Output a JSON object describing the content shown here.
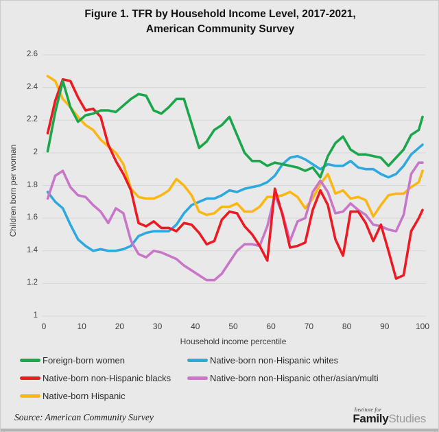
{
  "title": {
    "line1": "Figure 1. TFR by Household Income Level, 2017-2021,",
    "line2": "American Community Survey"
  },
  "chart_data": {
    "type": "line",
    "title": "Figure 1. TFR by Household Income Level, 2017-2021, American Community Survey",
    "xlabel": "Household income percentile",
    "ylabel": "Children born per woman",
    "xlim": [
      0,
      100
    ],
    "ylim": [
      1.0,
      2.6
    ],
    "grid": true,
    "legend_position": "bottom",
    "x_ticks": [
      "0",
      "10",
      "20",
      "30",
      "40",
      "50",
      "60",
      "70",
      "80",
      "90",
      "100"
    ],
    "x_tick_values": [
      0,
      10,
      20,
      30,
      40,
      50,
      60,
      70,
      80,
      90,
      100
    ],
    "y_ticks": [
      "2.6",
      "2.4",
      "2.2",
      "2",
      "1.8",
      "1.6",
      "1.4",
      "1.2",
      "1"
    ],
    "y_tick_values": [
      2.6,
      2.4,
      2.2,
      2.0,
      1.8,
      1.6,
      1.4,
      1.2,
      1.0
    ],
    "x": [
      1,
      3,
      5,
      7,
      9,
      11,
      13,
      15,
      17,
      19,
      21,
      23,
      25,
      27,
      29,
      31,
      33,
      35,
      37,
      39,
      41,
      43,
      45,
      47,
      49,
      51,
      53,
      55,
      57,
      59,
      61,
      63,
      65,
      67,
      69,
      71,
      73,
      75,
      77,
      79,
      81,
      83,
      85,
      87,
      89,
      91,
      93,
      95,
      97,
      99,
      100
    ],
    "draw_order": [
      3,
      2,
      4,
      1,
      0
    ],
    "series": [
      {
        "name": "Foreign-born women",
        "color": "#1CA64C",
        "values": [
          2.01,
          2.25,
          2.44,
          2.28,
          2.19,
          2.23,
          2.24,
          2.26,
          2.26,
          2.25,
          2.29,
          2.33,
          2.36,
          2.35,
          2.26,
          2.24,
          2.28,
          2.33,
          2.33,
          2.18,
          2.03,
          2.07,
          2.14,
          2.17,
          2.22,
          2.11,
          2.0,
          1.95,
          1.95,
          1.92,
          1.94,
          1.93,
          1.92,
          1.91,
          1.89,
          1.91,
          1.85,
          1.98,
          2.06,
          2.1,
          2.02,
          1.99,
          1.99,
          1.98,
          1.97,
          1.92,
          1.97,
          2.02,
          2.11,
          2.14,
          2.22
        ]
      },
      {
        "name": "Native-born non-Hispanic blacks",
        "color": "#EC1B23",
        "values": [
          2.12,
          2.32,
          2.45,
          2.44,
          2.34,
          2.26,
          2.27,
          2.22,
          2.05,
          1.95,
          1.87,
          1.77,
          1.57,
          1.55,
          1.58,
          1.54,
          1.54,
          1.52,
          1.57,
          1.56,
          1.51,
          1.44,
          1.46,
          1.59,
          1.64,
          1.63,
          1.55,
          1.5,
          1.43,
          1.34,
          1.78,
          1.62,
          1.42,
          1.43,
          1.45,
          1.65,
          1.77,
          1.68,
          1.47,
          1.37,
          1.64,
          1.64,
          1.57,
          1.46,
          1.56,
          1.4,
          1.23,
          1.25,
          1.52,
          1.6,
          1.65
        ]
      },
      {
        "name": "Native-born Hispanic",
        "color": "#FCB614",
        "values": [
          2.47,
          2.44,
          2.33,
          2.28,
          2.22,
          2.17,
          2.14,
          2.08,
          2.04,
          2.0,
          1.93,
          1.78,
          1.73,
          1.72,
          1.72,
          1.74,
          1.77,
          1.84,
          1.8,
          1.74,
          1.64,
          1.62,
          1.63,
          1.67,
          1.67,
          1.69,
          1.64,
          1.64,
          1.67,
          1.73,
          1.73,
          1.74,
          1.76,
          1.73,
          1.66,
          1.72,
          1.81,
          1.87,
          1.75,
          1.77,
          1.72,
          1.73,
          1.71,
          1.61,
          1.68,
          1.74,
          1.75,
          1.75,
          1.79,
          1.82,
          1.89
        ]
      },
      {
        "name": "Native-born non-Hispanic whites",
        "color": "#2EA9E0",
        "values": [
          1.76,
          1.7,
          1.66,
          1.56,
          1.47,
          1.43,
          1.4,
          1.41,
          1.4,
          1.4,
          1.41,
          1.43,
          1.49,
          1.51,
          1.52,
          1.52,
          1.52,
          1.56,
          1.63,
          1.68,
          1.7,
          1.72,
          1.72,
          1.74,
          1.77,
          1.76,
          1.78,
          1.79,
          1.8,
          1.82,
          1.86,
          1.93,
          1.97,
          1.98,
          1.96,
          1.93,
          1.9,
          1.93,
          1.92,
          1.92,
          1.95,
          1.91,
          1.9,
          1.9,
          1.87,
          1.85,
          1.87,
          1.92,
          1.99,
          2.03,
          2.05
        ]
      },
      {
        "name": "Native-born non-Hispanic other/asian/multi",
        "color": "#C877C8",
        "values": [
          1.72,
          1.86,
          1.89,
          1.79,
          1.74,
          1.73,
          1.68,
          1.64,
          1.57,
          1.66,
          1.63,
          1.46,
          1.38,
          1.36,
          1.4,
          1.39,
          1.37,
          1.35,
          1.31,
          1.28,
          1.25,
          1.22,
          1.22,
          1.26,
          1.33,
          1.4,
          1.44,
          1.44,
          1.43,
          1.55,
          1.74,
          1.63,
          1.46,
          1.58,
          1.6,
          1.76,
          1.83,
          1.76,
          1.63,
          1.64,
          1.69,
          1.65,
          1.62,
          1.56,
          1.55,
          1.53,
          1.52,
          1.62,
          1.87,
          1.94,
          1.94
        ]
      }
    ]
  },
  "source": "Source: American Community Survey",
  "logo": {
    "top": "Institute for",
    "bold": "Family",
    "light": "Studies"
  },
  "colors": {
    "background": "#E9E9E9",
    "gridline": "#D6D6D6",
    "tick_text": "#3D3D3D",
    "title_text": "#111111",
    "bottom_bar": "#B3B3B3"
  }
}
